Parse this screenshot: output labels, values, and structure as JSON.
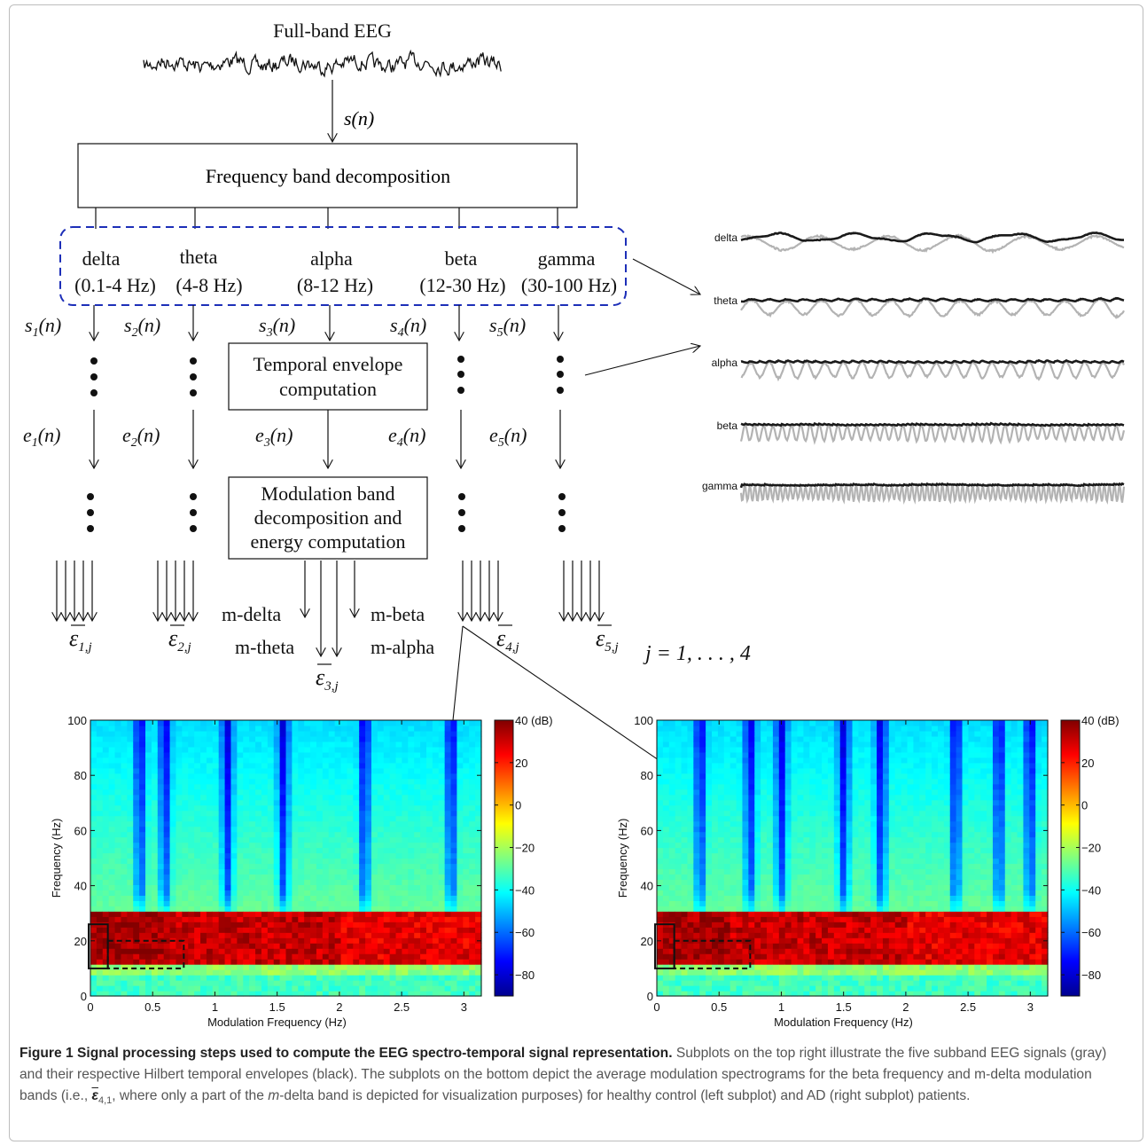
{
  "flowchart": {
    "input_title": "Full-band EEG",
    "input_signal": "s(n)",
    "decomposition_box": "Frequency band decomposition",
    "bands": [
      {
        "name": "delta",
        "range": "(0.1-4 Hz)",
        "signal": "s",
        "sub": "1",
        "envelope": "e"
      },
      {
        "name": "theta",
        "range": "(4-8 Hz)",
        "signal": "s",
        "sub": "2",
        "envelope": "e"
      },
      {
        "name": "alpha",
        "range": "(8-12 Hz)",
        "signal": "s",
        "sub": "3",
        "envelope": "e"
      },
      {
        "name": "beta",
        "range": "(12-30 Hz)",
        "signal": "s",
        "sub": "4",
        "envelope": "e"
      },
      {
        "name": "gamma",
        "range": "(30-100 Hz)",
        "signal": "s",
        "sub": "5",
        "envelope": "e"
      }
    ],
    "signal_arg": "(n)",
    "envelope_box": [
      "Temporal envelope",
      "computation"
    ],
    "modulation_box": [
      "Modulation band",
      "decomposition and",
      "energy computation"
    ],
    "mod_bands": [
      "m-delta",
      "m-theta",
      "m-beta",
      "m-alpha"
    ],
    "energy_symbol": "ε",
    "energy_index": ",j",
    "j_range": "j = 1, . . . , 4"
  },
  "subband_panel": {
    "labels": [
      "delta",
      "theta",
      "alpha",
      "beta",
      "gamma"
    ],
    "subband_color": "#b3b3b3",
    "envelope_color": "#1a1a1a"
  },
  "spectrograms": {
    "chart_data": [
      {
        "type": "heatmap",
        "group": "healthy control",
        "xlabel": "Modulation Frequency (Hz)",
        "ylabel": "Frequency (Hz)",
        "xlim": [
          0,
          3.14
        ],
        "ylim": [
          0,
          100
        ],
        "xticks": [
          0,
          0.5,
          1,
          1.5,
          2,
          2.5,
          3
        ],
        "xtick_labels": [
          "0",
          "0.5",
          "1",
          "1.5",
          "2",
          "2.5",
          "3"
        ],
        "yticks": [
          0,
          20,
          40,
          60,
          80,
          100
        ],
        "colorbar": {
          "min": -90,
          "max": 40,
          "ticks": [
            40,
            20,
            0,
            -20,
            -40,
            -60,
            -80
          ],
          "tick_labels": [
            "40 (dB)",
            "20",
            "0",
            "−20",
            "−40",
            "−60",
            "−80"
          ]
        },
        "high_energy_band_hz": [
          12,
          30
        ],
        "dark_streaks_mod_hz": [
          0.4,
          0.6,
          1.1,
          1.55,
          2.2,
          2.9
        ],
        "solid_box": {
          "x": [
            0,
            0.14
          ],
          "y": [
            10,
            26
          ]
        },
        "dashed_box": {
          "x": [
            0.14,
            0.75
          ],
          "y": [
            10,
            20
          ]
        }
      },
      {
        "type": "heatmap",
        "group": "AD",
        "xlabel": "Modulation Frequency (Hz)",
        "ylabel": "Frequency (Hz)",
        "xlim": [
          0,
          3.14
        ],
        "ylim": [
          0,
          100
        ],
        "xticks": [
          0,
          0.5,
          1,
          1.5,
          2,
          2.5,
          3
        ],
        "xtick_labels": [
          "0",
          "0.5",
          "1",
          "1.5",
          "2",
          "2.5",
          "3"
        ],
        "yticks": [
          0,
          20,
          40,
          60,
          80,
          100
        ],
        "colorbar": {
          "min": -90,
          "max": 40,
          "ticks": [
            40,
            20,
            0,
            -20,
            -40,
            -60,
            -80
          ],
          "tick_labels": [
            "40 (dB)",
            "20",
            "0",
            "−20",
            "−40",
            "−60",
            "−80"
          ]
        },
        "high_energy_band_hz": [
          12,
          30
        ],
        "dark_streaks_mod_hz": [
          0.35,
          0.75,
          1.0,
          1.5,
          1.8,
          2.4,
          2.75,
          3.0
        ],
        "solid_box": {
          "x": [
            0,
            0.14
          ],
          "y": [
            10,
            26
          ]
        },
        "dashed_box": {
          "x": [
            0.14,
            0.75
          ],
          "y": [
            10,
            20
          ]
        }
      }
    ]
  },
  "caption": {
    "title": "Figure 1 Signal processing steps used to compute the EEG spectro-temporal signal representation.",
    "text_1": " Subplots on the top right illustrate the five subband EEG signals (gray) and their respective Hilbert temporal envelopes (black). The subplots on the bottom depict the average modulation spectrograms for the beta frequency and m-delta modulation bands (i.e., ",
    "symbol": "ε",
    "symbol_sub": "4,1",
    "text_2": ", where only a part of the ",
    "italic_term": "m",
    "text_3": "-delta band is depicted for visualization purposes) for healthy control (left subplot) and AD (right subplot) patients."
  }
}
